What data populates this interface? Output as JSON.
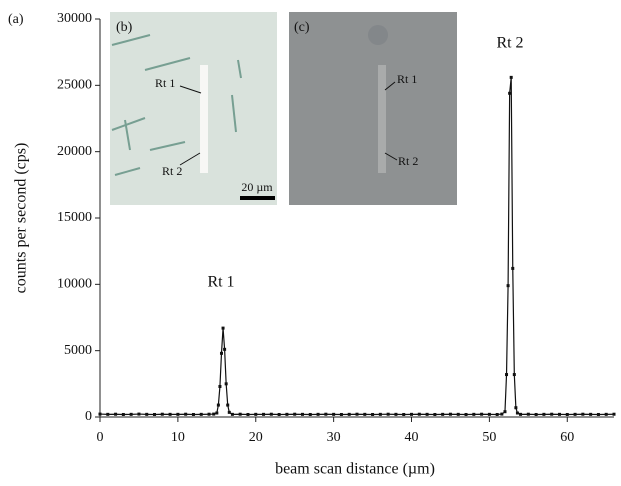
{
  "chart_data": {
    "type": "line",
    "panel_label": "(a)",
    "xlabel": "beam scan distance (µm)",
    "ylabel": "counts per second (cps)",
    "x": [
      0,
      1,
      2,
      3,
      4,
      5,
      6,
      7,
      8,
      9,
      10,
      11,
      12,
      13,
      14,
      14.6,
      15,
      15.2,
      15.4,
      15.6,
      15.8,
      16,
      16.2,
      16.4,
      16.6,
      17,
      18,
      19,
      20,
      21,
      22,
      23,
      24,
      25,
      26,
      27,
      28,
      29,
      30,
      31,
      32,
      33,
      34,
      35,
      36,
      37,
      38,
      39,
      40,
      41,
      42,
      43,
      44,
      45,
      46,
      47,
      48,
      49,
      50,
      51,
      51.6,
      52,
      52.2,
      52.4,
      52.6,
      52.8,
      53,
      53.2,
      53.4,
      53.6,
      54,
      55,
      56,
      57,
      58,
      59,
      60,
      61,
      62,
      63,
      64,
      65,
      66
    ],
    "series": [
      {
        "color": "#111111",
        "values": [
          220,
          200,
          210,
          190,
          200,
          220,
          200,
          190,
          210,
          200,
          200,
          210,
          190,
          200,
          210,
          220,
          300,
          900,
          2300,
          4800,
          6700,
          5100,
          2500,
          900,
          350,
          200,
          210,
          190,
          200,
          200,
          210,
          190,
          200,
          210,
          200,
          190,
          200,
          210,
          200,
          190,
          200,
          210,
          200,
          190,
          200,
          210,
          200,
          190,
          200,
          210,
          200,
          190,
          200,
          210,
          200,
          190,
          200,
          210,
          200,
          190,
          220,
          400,
          3200,
          9900,
          24400,
          25600,
          11200,
          3200,
          700,
          300,
          200,
          210,
          190,
          200,
          210,
          200,
          190,
          200,
          210,
          200,
          190,
          200,
          210
        ]
      }
    ],
    "xlim": [
      0,
      66
    ],
    "ylim": [
      0,
      30000
    ],
    "xticks": [
      0,
      10,
      20,
      30,
      40,
      50,
      60
    ],
    "yticks": [
      0,
      5000,
      10000,
      15000,
      20000,
      25000,
      30000
    ],
    "annotations": [
      "Rt 1",
      "Rt 2"
    ],
    "insets": [
      {
        "label": "(b)",
        "markers": [
          "Rt 1",
          "Rt 2"
        ],
        "scale_bar": "20 µm"
      },
      {
        "label": "(c)",
        "markers": [
          "Rt 1",
          "Rt 2"
        ]
      }
    ]
  }
}
